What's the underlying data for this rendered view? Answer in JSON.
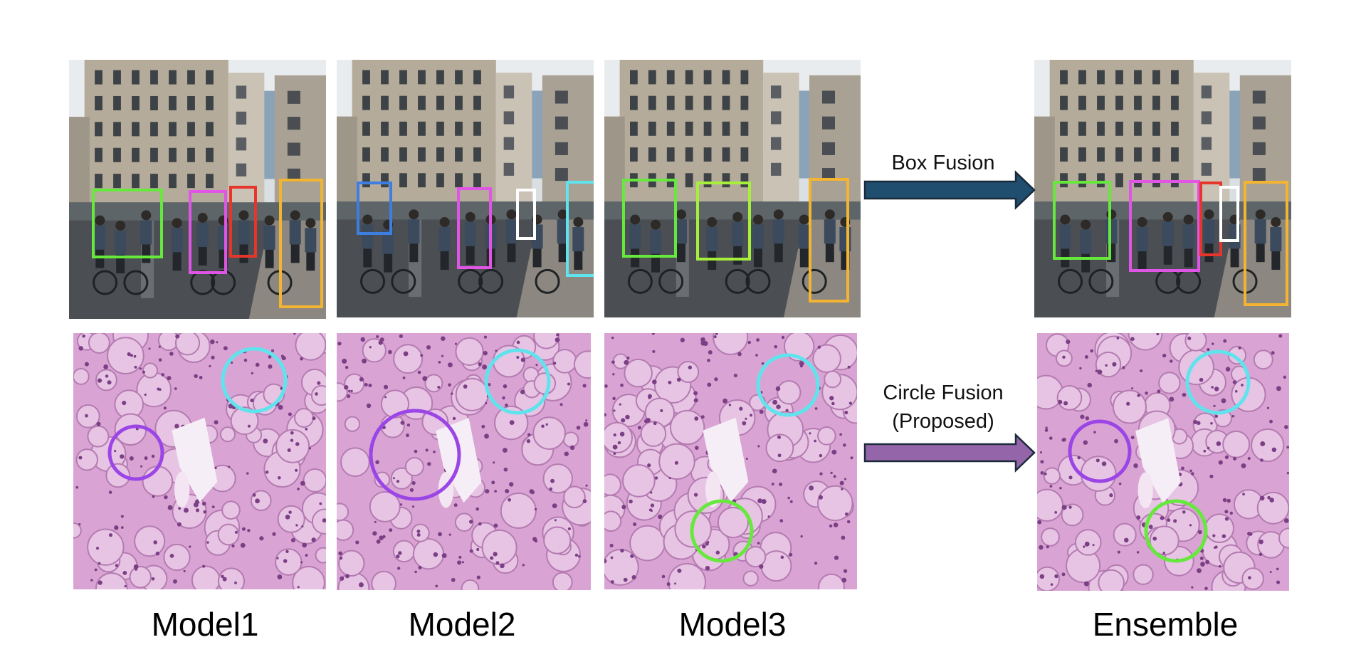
{
  "arrows": {
    "box_fusion": {
      "label": "Box Fusion",
      "color": "#1f4e6e"
    },
    "circle_fusion": {
      "line1": "Circle Fusion",
      "line2": "(Proposed)",
      "color": "#9466a9"
    }
  },
  "columns": [
    {
      "label": "Model1"
    },
    {
      "label": "Model2"
    },
    {
      "label": "Model3"
    },
    {
      "label": "Ensemble"
    }
  ],
  "colors": {
    "green": "#66e83d",
    "lime": "#a6f03c",
    "magenta": "#e054e6",
    "red": "#e6352b",
    "orange": "#f2b431",
    "blue": "#3e7ee0",
    "white": "#ffffff",
    "cyan": "#5fe3ec",
    "purple": "#9b45e6"
  },
  "panels": [
    {
      "name": "street-model1",
      "type": "street",
      "boxes": [
        {
          "color": "green"
        },
        {
          "color": "magenta"
        },
        {
          "color": "red"
        },
        {
          "color": "orange"
        }
      ]
    },
    {
      "name": "street-model2",
      "type": "street",
      "boxes": [
        {
          "color": "blue"
        },
        {
          "color": "magenta"
        },
        {
          "color": "white"
        },
        {
          "color": "cyan"
        }
      ]
    },
    {
      "name": "street-model3",
      "type": "street",
      "boxes": [
        {
          "color": "green"
        },
        {
          "color": "lime"
        },
        {
          "color": "orange"
        }
      ]
    },
    {
      "name": "street-ensemble",
      "type": "street",
      "boxes": [
        {
          "color": "green"
        },
        {
          "color": "magenta"
        },
        {
          "color": "red"
        },
        {
          "color": "white"
        },
        {
          "color": "orange"
        }
      ]
    },
    {
      "name": "tissue-model1",
      "type": "tissue",
      "circles": [
        {
          "color": "cyan"
        },
        {
          "color": "purple"
        }
      ]
    },
    {
      "name": "tissue-model2",
      "type": "tissue",
      "circles": [
        {
          "color": "cyan"
        },
        {
          "color": "purple"
        }
      ]
    },
    {
      "name": "tissue-model3",
      "type": "tissue",
      "circles": [
        {
          "color": "cyan"
        },
        {
          "color": "green"
        }
      ]
    },
    {
      "name": "tissue-ensemble",
      "type": "tissue",
      "circles": [
        {
          "color": "cyan"
        },
        {
          "color": "purple"
        },
        {
          "color": "green"
        }
      ]
    }
  ]
}
